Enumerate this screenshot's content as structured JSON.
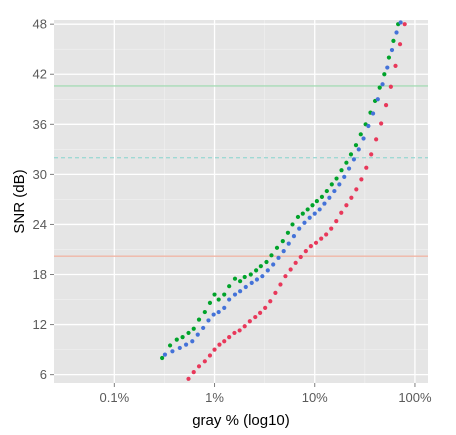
{
  "chart_data": {
    "type": "scatter",
    "xlabel": "gray % (log10)",
    "ylabel": "SNR (dB)",
    "x_scale": "log10",
    "xlim": [
      0.00025,
      1.35
    ],
    "ylim": [
      5,
      48.5
    ],
    "x_ticks": [
      {
        "value": 0.001,
        "label": "0.1%"
      },
      {
        "value": 0.01,
        "label": "1%"
      },
      {
        "value": 0.1,
        "label": "10%"
      },
      {
        "value": 1.0,
        "label": "100%"
      }
    ],
    "y_ticks": [
      {
        "value": 6,
        "label": "6"
      },
      {
        "value": 12,
        "label": "12"
      },
      {
        "value": 18,
        "label": "18"
      },
      {
        "value": 24,
        "label": "24"
      },
      {
        "value": 30,
        "label": "30"
      },
      {
        "value": 36,
        "label": "36"
      },
      {
        "value": 42,
        "label": "42"
      },
      {
        "value": 48,
        "label": "48"
      }
    ],
    "grid": true,
    "legend": "none",
    "reference_lines": [
      {
        "y": 40.6,
        "color": "#a8dcb6",
        "style": "solid"
      },
      {
        "y": 32.0,
        "color": "#9fd9d4",
        "style": "dashed"
      },
      {
        "y": 20.2,
        "color": "#f0b6a6",
        "style": "solid"
      }
    ],
    "series": [
      {
        "color": "#00a32a",
        "points": [
          [
            0.003,
            8.0
          ],
          [
            0.0036,
            9.5
          ],
          [
            0.0042,
            10.2
          ],
          [
            0.0048,
            10.5
          ],
          [
            0.0055,
            11.0
          ],
          [
            0.0062,
            11.5
          ],
          [
            0.007,
            12.6
          ],
          [
            0.008,
            13.5
          ],
          [
            0.009,
            14.6
          ],
          [
            0.01,
            15.6
          ],
          [
            0.011,
            15.0
          ],
          [
            0.0125,
            15.6
          ],
          [
            0.014,
            16.6
          ],
          [
            0.016,
            17.5
          ],
          [
            0.018,
            17.2
          ],
          [
            0.02,
            17.7
          ],
          [
            0.023,
            18.0
          ],
          [
            0.026,
            18.5
          ],
          [
            0.029,
            19.0
          ],
          [
            0.033,
            19.5
          ],
          [
            0.037,
            20.3
          ],
          [
            0.042,
            21.2
          ],
          [
            0.048,
            22.0
          ],
          [
            0.054,
            23.0
          ],
          [
            0.06,
            24.0
          ],
          [
            0.068,
            24.9
          ],
          [
            0.076,
            25.3
          ],
          [
            0.085,
            25.8
          ],
          [
            0.095,
            26.3
          ],
          [
            0.105,
            26.8
          ],
          [
            0.118,
            27.3
          ],
          [
            0.132,
            28.0
          ],
          [
            0.148,
            28.8
          ],
          [
            0.165,
            29.5
          ],
          [
            0.185,
            30.5
          ],
          [
            0.207,
            31.4
          ],
          [
            0.23,
            32.4
          ],
          [
            0.258,
            33.5
          ],
          [
            0.288,
            34.8
          ],
          [
            0.322,
            36.0
          ],
          [
            0.36,
            37.4
          ],
          [
            0.4,
            38.8
          ],
          [
            0.445,
            40.4
          ],
          [
            0.495,
            42.0
          ],
          [
            0.55,
            44.0
          ],
          [
            0.61,
            46.0
          ],
          [
            0.68,
            48.0
          ]
        ]
      },
      {
        "color": "#4472d8",
        "points": [
          [
            0.0032,
            8.4
          ],
          [
            0.0038,
            8.8
          ],
          [
            0.0045,
            9.2
          ],
          [
            0.0052,
            9.6
          ],
          [
            0.006,
            10.0
          ],
          [
            0.0068,
            10.8
          ],
          [
            0.0077,
            11.6
          ],
          [
            0.0087,
            12.5
          ],
          [
            0.0098,
            13.2
          ],
          [
            0.011,
            13.5
          ],
          [
            0.0125,
            14.0
          ],
          [
            0.014,
            15.0
          ],
          [
            0.016,
            15.6
          ],
          [
            0.018,
            16.0
          ],
          [
            0.0205,
            16.5
          ],
          [
            0.0235,
            17.0
          ],
          [
            0.0265,
            17.4
          ],
          [
            0.03,
            17.8
          ],
          [
            0.034,
            18.5
          ],
          [
            0.0385,
            19.2
          ],
          [
            0.0435,
            20.0
          ],
          [
            0.049,
            20.8
          ],
          [
            0.055,
            21.7
          ],
          [
            0.062,
            22.6
          ],
          [
            0.07,
            23.5
          ],
          [
            0.079,
            24.2
          ],
          [
            0.089,
            24.8
          ],
          [
            0.1,
            25.3
          ],
          [
            0.112,
            25.8
          ],
          [
            0.125,
            26.5
          ],
          [
            0.14,
            27.2
          ],
          [
            0.157,
            28.0
          ],
          [
            0.176,
            28.8
          ],
          [
            0.197,
            29.7
          ],
          [
            0.22,
            30.7
          ],
          [
            0.246,
            31.8
          ],
          [
            0.275,
            33.0
          ],
          [
            0.307,
            34.3
          ],
          [
            0.343,
            35.8
          ],
          [
            0.382,
            37.3
          ],
          [
            0.426,
            39.0
          ],
          [
            0.475,
            40.8
          ],
          [
            0.53,
            42.8
          ],
          [
            0.59,
            44.9
          ],
          [
            0.655,
            47.0
          ],
          [
            0.72,
            48.2
          ]
        ]
      },
      {
        "color": "#e8385a",
        "points": [
          [
            0.0055,
            5.5
          ],
          [
            0.0062,
            6.3
          ],
          [
            0.007,
            7.0
          ],
          [
            0.008,
            7.6
          ],
          [
            0.009,
            8.3
          ],
          [
            0.01,
            9.0
          ],
          [
            0.0112,
            9.6
          ],
          [
            0.0125,
            10.0
          ],
          [
            0.014,
            10.5
          ],
          [
            0.0158,
            11.0
          ],
          [
            0.0178,
            11.3
          ],
          [
            0.02,
            11.8
          ],
          [
            0.0225,
            12.4
          ],
          [
            0.0255,
            12.9
          ],
          [
            0.0285,
            13.4
          ],
          [
            0.032,
            14.0
          ],
          [
            0.036,
            14.8
          ],
          [
            0.0405,
            15.8
          ],
          [
            0.0455,
            16.8
          ],
          [
            0.051,
            17.8
          ],
          [
            0.0575,
            18.6
          ],
          [
            0.0645,
            19.4
          ],
          [
            0.0725,
            20.1
          ],
          [
            0.0815,
            20.8
          ],
          [
            0.0915,
            21.4
          ],
          [
            0.103,
            21.8
          ],
          [
            0.116,
            22.3
          ],
          [
            0.13,
            22.8
          ],
          [
            0.146,
            23.5
          ],
          [
            0.164,
            24.4
          ],
          [
            0.184,
            25.4
          ],
          [
            0.207,
            26.3
          ],
          [
            0.232,
            27.2
          ],
          [
            0.26,
            28.2
          ],
          [
            0.292,
            29.4
          ],
          [
            0.327,
            30.8
          ],
          [
            0.366,
            32.4
          ],
          [
            0.41,
            34.2
          ],
          [
            0.46,
            36.1
          ],
          [
            0.515,
            38.3
          ],
          [
            0.575,
            40.5
          ],
          [
            0.64,
            43.0
          ],
          [
            0.71,
            45.6
          ],
          [
            0.79,
            48.0
          ]
        ]
      }
    ]
  }
}
